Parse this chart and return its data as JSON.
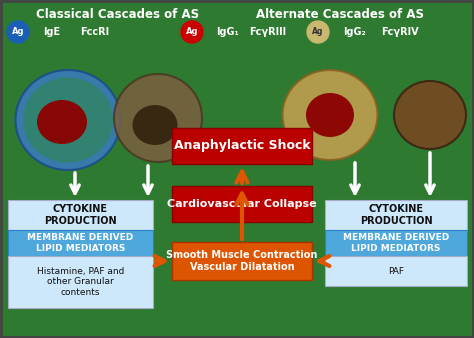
{
  "bg_color": "#2d7a30",
  "title_left": "Classical Cascades of AS",
  "title_right": "Alternate Cascades of AS",
  "title_fontsize": 8.5,
  "title_color": "white",
  "box_anaphylactic": "Anaphylactic Shock",
  "box_cardiovascular": "Cardiovascular Collapse",
  "box_smooth": "Smooth Muscle Contraction\nVascular Dilatation",
  "box_red_color": "#bb0000",
  "box_orange_color": "#dd5500",
  "left_box_lines": [
    "CYTOKINE\nPRODUCTION",
    "MEMBRANE DERIVED\nLIPID MEDIATORS",
    "Histamine, PAF and\nother Granular\ncontents"
  ],
  "right_box_lines": [
    "CYTOKINE\nPRODUCTION",
    "MEMBRANE DERIVED\nLIPID MEDIATORS",
    "PAF"
  ],
  "left_box_colors": [
    "#cce8fa",
    "#4fa8dc",
    "#cce8fa"
  ],
  "right_box_colors": [
    "#cce8fa",
    "#4fa8dc",
    "#cce8fa"
  ],
  "box_text_dark": "#111111",
  "arrow_orange": "#e05500",
  "arrow_white": "#ffffff"
}
